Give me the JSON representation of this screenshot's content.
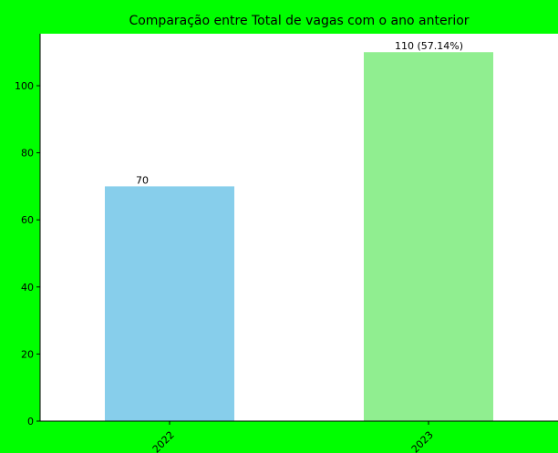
{
  "chart_data": {
    "type": "bar",
    "title": "Comparação entre Total de vagas com o ano anterior",
    "xlabel": "",
    "ylabel": "",
    "categories": [
      "2022",
      "2023"
    ],
    "values": [
      70,
      110
    ],
    "data_labels": [
      "70",
      "110 (57.14%)"
    ],
    "bar_colors": [
      "#87ceeb",
      "#90ee90"
    ],
    "ylim": [
      0,
      115.5
    ],
    "yticks": [
      0,
      20,
      40,
      60,
      80,
      100
    ],
    "xtick_rotation": -45,
    "grid": false,
    "legend": "none",
    "background_color": "#00ff00",
    "plot_background_color": "#ffffff"
  }
}
